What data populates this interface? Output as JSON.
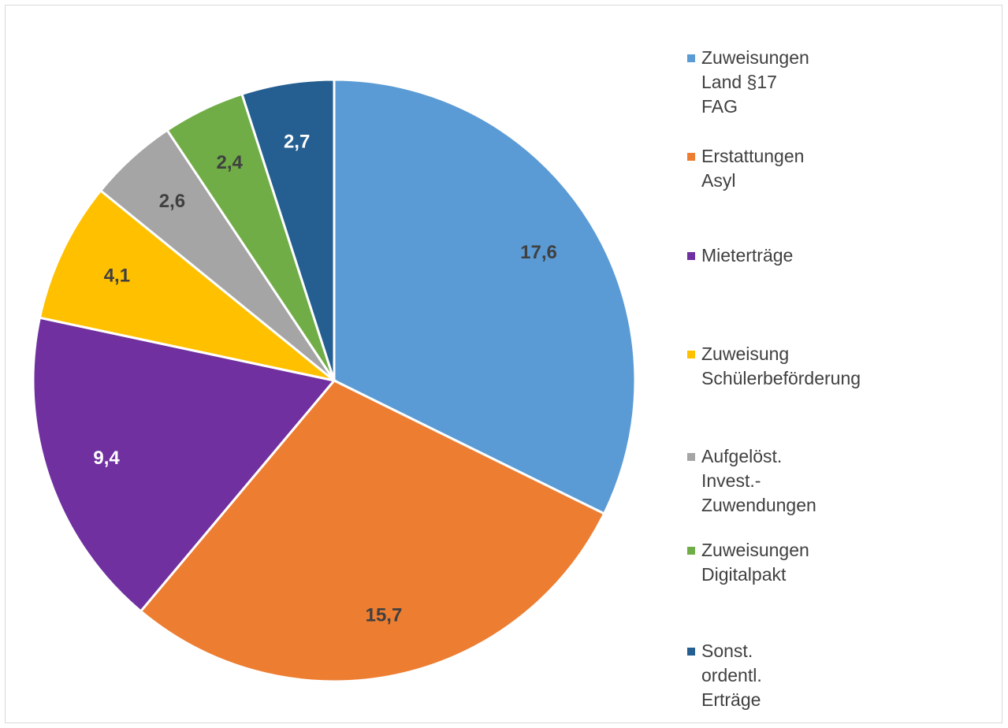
{
  "chart_data": {
    "type": "pie",
    "categories": [
      "Zuweisungen Land §17 FAG",
      "Erstattungen Asyl",
      "Mieterträge",
      "Zuweisung\nSchülerbeförderung",
      "Aufgelöst. Invest.-\nZuwendungen",
      "Zuweisungen Digitalpakt",
      "Sonst. ordentl. Erträge"
    ],
    "values": [
      17.6,
      15.7,
      9.4,
      4.1,
      2.6,
      2.4,
      2.7
    ],
    "value_labels": [
      "17,6",
      "15,7",
      "9,4",
      "4,1",
      "2,6",
      "2,4",
      "2,7"
    ],
    "colors": [
      "#5b9bd5",
      "#ed7d31",
      "#7030a0",
      "#ffc000",
      "#a5a5a5",
      "#70ad47",
      "#255e91"
    ],
    "legend": "right"
  }
}
